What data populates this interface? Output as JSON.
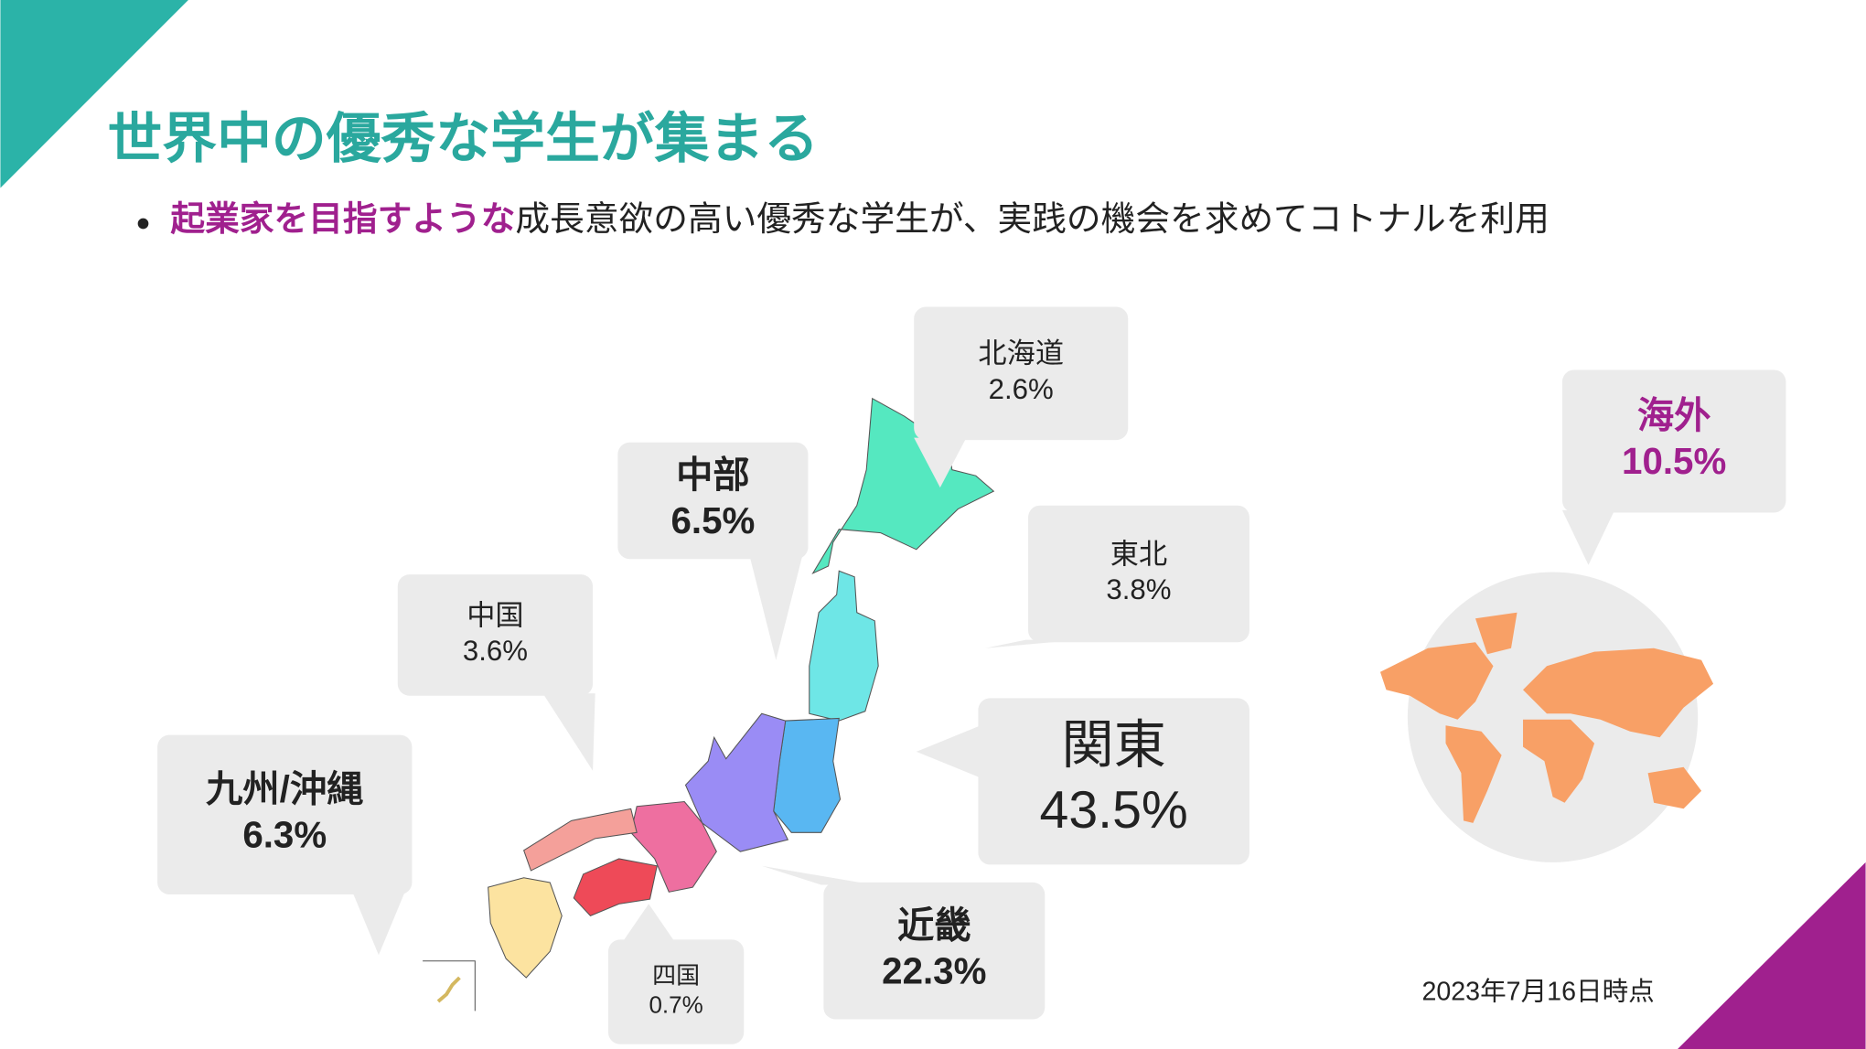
{
  "title": "世界中の優秀な学生が集まる",
  "bullet": {
    "highlight": "起業家を目指すような",
    "text": "成長意欲の高い優秀な学生が、実践の機会を求めてコトナルを利用"
  },
  "regions": [
    {
      "name": "北海道",
      "share": "2.6%"
    },
    {
      "name": "中部",
      "share": "6.5%"
    },
    {
      "name": "東北",
      "share": "3.8%"
    },
    {
      "name": "中国",
      "share": "3.6%"
    },
    {
      "name": "関東",
      "share": "43.5%"
    },
    {
      "name": "九州/沖縄",
      "share": "6.3%"
    },
    {
      "name": "近畿",
      "share": "22.3%"
    },
    {
      "name": "四国",
      "share": "0.7%"
    },
    {
      "name": "海外",
      "share": "10.5%"
    }
  ],
  "note": "2023年7月16日時点"
}
